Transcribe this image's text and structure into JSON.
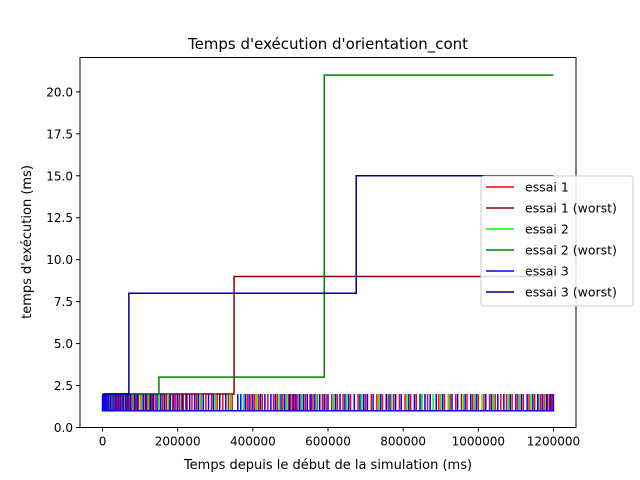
{
  "chart_data": {
    "type": "line",
    "title": "Temps d'exécution d'orientation_cont",
    "xlabel": "Temps depuis le début de la simulation (ms)",
    "ylabel": "temps d'exécution (ms)",
    "xlim": [
      -60000,
      1260000
    ],
    "ylim": [
      0,
      22.05
    ],
    "xticks": [
      0,
      200000,
      400000,
      600000,
      800000,
      1000000,
      1200000
    ],
    "xtick_labels": [
      "0",
      "200000",
      "400000",
      "600000",
      "800000",
      "1000000",
      "1200000"
    ],
    "yticks": [
      0,
      2.5,
      5,
      7.5,
      10,
      12.5,
      15,
      17.5,
      20
    ],
    "ytick_labels": [
      "0.0",
      "2.5",
      "5.0",
      "7.5",
      "10.0",
      "12.5",
      "15.0",
      "17.5",
      "20.0"
    ],
    "grid": false,
    "legend_position": "right",
    "series": [
      {
        "name": "essai 1",
        "color": "#ff0000",
        "style": "spiky",
        "base": 1,
        "spikes": [
          5000,
          8000,
          12000,
          15000,
          20000,
          26000,
          32000,
          38000,
          45000,
          52000,
          58000,
          65000,
          72000,
          80000,
          88000,
          95000,
          102000,
          110000,
          118000,
          125000,
          132000,
          140000,
          150000,
          160000,
          170000,
          178000,
          186000,
          195000,
          205000,
          215000,
          225000,
          238000,
          250000,
          262000,
          275000,
          290000,
          305000,
          320000,
          335000,
          345000,
          385000,
          395000,
          405000,
          415000,
          425000,
          440000,
          455000,
          465000,
          480000,
          495000,
          500000,
          505000,
          512000,
          520000,
          530000,
          540000,
          552000,
          560000,
          572000,
          585000,
          595000,
          610000,
          625000,
          640000,
          660000,
          680000,
          700000,
          715000,
          730000,
          745000,
          760000,
          775000,
          790000,
          805000,
          820000,
          835000,
          850000,
          865000,
          880000,
          895000,
          910000,
          925000,
          940000,
          955000,
          970000,
          985000,
          1000000,
          1015000,
          1030000,
          1045000,
          1060000,
          1075000,
          1090000,
          1105000,
          1120000,
          1135000,
          1150000,
          1165000,
          1175000,
          1185000,
          1190000,
          1195000,
          1198000
        ],
        "spike_value": 2
      },
      {
        "name": "essai 1 (worst)",
        "color": "#8b0000",
        "style": "step",
        "points": [
          [
            0,
            1
          ],
          [
            5000,
            2
          ],
          [
            350000,
            2
          ],
          [
            350000,
            9
          ],
          [
            1200000,
            9
          ]
        ]
      },
      {
        "name": "essai 2",
        "color": "#00ff00",
        "style": "spiky",
        "base": 1,
        "spikes": [
          10000,
          25000,
          42000,
          60000,
          78000,
          100000,
          122000,
          150000,
          175000,
          210000,
          260000,
          300000,
          340000,
          375000,
          410000,
          470000,
          490000,
          530000,
          570000,
          615000,
          650000,
          690000,
          735000,
          770000,
          810000,
          850000,
          880000,
          900000,
          920000,
          960000,
          990000,
          1010000,
          1040000,
          1080000,
          1110000,
          1140000,
          1160000,
          1180000
        ],
        "spike_value": 2
      },
      {
        "name": "essai 2 (worst)",
        "color": "#008000",
        "style": "step",
        "points": [
          [
            0,
            1
          ],
          [
            3000,
            2
          ],
          [
            150000,
            2
          ],
          [
            150000,
            3
          ],
          [
            590000,
            3
          ],
          [
            590000,
            21
          ],
          [
            1200000,
            21
          ]
        ]
      },
      {
        "name": "essai 3",
        "color": "#0000ff",
        "style": "spiky",
        "base": 1,
        "spikes": [
          0,
          3000,
          7000,
          11000,
          16000,
          22000,
          28000,
          35000,
          42000,
          48000,
          55000,
          62000,
          68000,
          75000,
          85000,
          92000,
          108000,
          115000,
          128000,
          135000,
          145000,
          155000,
          165000,
          180000,
          190000,
          200000,
          212000,
          222000,
          232000,
          245000,
          255000,
          268000,
          282000,
          295000,
          312000,
          328000,
          360000,
          368000,
          380000,
          390000,
          400000,
          420000,
          432000,
          448000,
          460000,
          475000,
          485000,
          498000,
          508000,
          515000,
          525000,
          535000,
          545000,
          555000,
          565000,
          578000,
          590000,
          600000,
          620000,
          632000,
          645000,
          655000,
          670000,
          685000,
          695000,
          705000,
          720000,
          740000,
          755000,
          765000,
          780000,
          795000,
          815000,
          830000,
          845000,
          858000,
          872000,
          888000,
          905000,
          930000,
          945000,
          965000,
          980000,
          995000,
          1020000,
          1035000,
          1052000,
          1068000,
          1085000,
          1100000,
          1115000,
          1130000,
          1145000,
          1158000,
          1170000,
          1182000,
          1192000,
          1200000
        ],
        "spike_value": 2
      },
      {
        "name": "essai 3 (worst)",
        "color": "#00008b",
        "style": "step",
        "points": [
          [
            0,
            2
          ],
          [
            70000,
            2
          ],
          [
            70000,
            8
          ],
          [
            675000,
            8
          ],
          [
            675000,
            15
          ],
          [
            1200000,
            15
          ]
        ]
      }
    ]
  }
}
